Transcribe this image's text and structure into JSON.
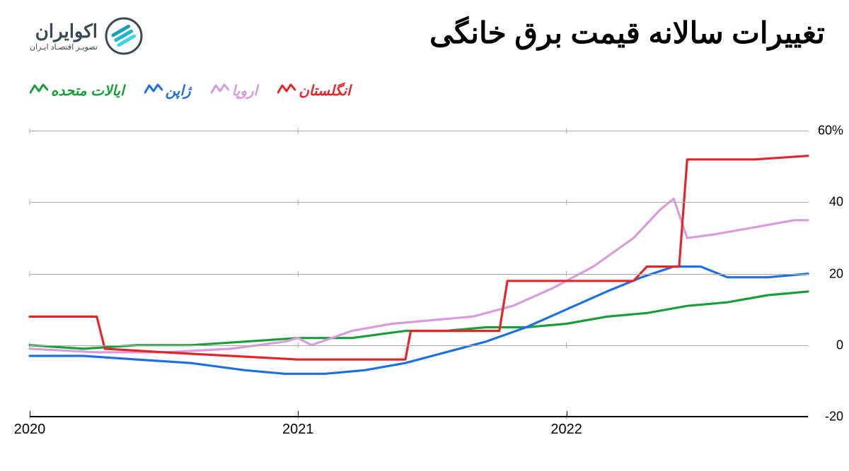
{
  "logo": {
    "main": "اکوایران",
    "sub": "تصویـر اقتصـاد ایـران",
    "stripe_colors": [
      "#19a0b3",
      "#1fb6c9",
      "#3fd3e3"
    ]
  },
  "title": "تغییرات سالانه قیمت برق خانگی",
  "legend": [
    {
      "label": "انگلستان",
      "color": "#e3262a"
    },
    {
      "label": "اروپا",
      "color": "#d89bdc"
    },
    {
      "label": "ژاپن",
      "color": "#1f6fe0"
    },
    {
      "label": "ایالات متحده",
      "color": "#1a9e3c"
    }
  ],
  "chart": {
    "type": "line",
    "background_color": "#ffffff",
    "grid_color": "#b0aaa4",
    "line_width": 3.2,
    "xlim": [
      2020,
      2022.9
    ],
    "ylim": [
      -20,
      65
    ],
    "y_ticks": [
      -20,
      0,
      20,
      40,
      60
    ],
    "y_tick_labels": [
      "-20",
      "0",
      "20",
      "40",
      "60%"
    ],
    "x_ticks": [
      2020,
      2021,
      2022
    ],
    "x_tick_labels": [
      "2020",
      "2021",
      "2022"
    ],
    "series": {
      "uk": {
        "color": "#e3262a",
        "points": [
          [
            2020.0,
            8
          ],
          [
            2020.25,
            8
          ],
          [
            2020.28,
            -1
          ],
          [
            2020.5,
            -2
          ],
          [
            2020.75,
            -3
          ],
          [
            2021.0,
            -4
          ],
          [
            2021.25,
            -4
          ],
          [
            2021.4,
            -4
          ],
          [
            2021.42,
            4
          ],
          [
            2021.7,
            4
          ],
          [
            2021.75,
            4
          ],
          [
            2021.78,
            18
          ],
          [
            2022.1,
            18
          ],
          [
            2022.25,
            18
          ],
          [
            2022.3,
            22
          ],
          [
            2022.42,
            22
          ],
          [
            2022.45,
            52
          ],
          [
            2022.7,
            52
          ],
          [
            2022.9,
            53
          ]
        ]
      },
      "europe": {
        "color": "#d89bdc",
        "points": [
          [
            2020.0,
            -1
          ],
          [
            2020.25,
            -2
          ],
          [
            2020.5,
            -2
          ],
          [
            2020.75,
            -1
          ],
          [
            2020.95,
            1
          ],
          [
            2021.0,
            2
          ],
          [
            2021.05,
            0
          ],
          [
            2021.2,
            4
          ],
          [
            2021.35,
            6
          ],
          [
            2021.5,
            7
          ],
          [
            2021.65,
            8
          ],
          [
            2021.8,
            11
          ],
          [
            2021.95,
            16
          ],
          [
            2022.1,
            22
          ],
          [
            2022.25,
            30
          ],
          [
            2022.35,
            38
          ],
          [
            2022.4,
            41
          ],
          [
            2022.45,
            30
          ],
          [
            2022.55,
            31
          ],
          [
            2022.7,
            33
          ],
          [
            2022.85,
            35
          ],
          [
            2022.9,
            35
          ]
        ]
      },
      "japan": {
        "color": "#1f6fe0",
        "points": [
          [
            2020.0,
            -3
          ],
          [
            2020.2,
            -3
          ],
          [
            2020.4,
            -4
          ],
          [
            2020.6,
            -5
          ],
          [
            2020.8,
            -7
          ],
          [
            2020.95,
            -8
          ],
          [
            2021.1,
            -8
          ],
          [
            2021.25,
            -7
          ],
          [
            2021.4,
            -5
          ],
          [
            2021.55,
            -2
          ],
          [
            2021.7,
            1
          ],
          [
            2021.85,
            5
          ],
          [
            2022.0,
            10
          ],
          [
            2022.15,
            15
          ],
          [
            2022.28,
            19
          ],
          [
            2022.4,
            22
          ],
          [
            2022.5,
            22
          ],
          [
            2022.6,
            19
          ],
          [
            2022.75,
            19
          ],
          [
            2022.9,
            20
          ]
        ]
      },
      "us": {
        "color": "#1a9e3c",
        "points": [
          [
            2020.0,
            0
          ],
          [
            2020.2,
            -1
          ],
          [
            2020.4,
            0
          ],
          [
            2020.6,
            0
          ],
          [
            2020.8,
            1
          ],
          [
            2021.0,
            2
          ],
          [
            2021.2,
            2
          ],
          [
            2021.3,
            3
          ],
          [
            2021.4,
            4
          ],
          [
            2021.55,
            4
          ],
          [
            2021.7,
            5
          ],
          [
            2021.85,
            5
          ],
          [
            2022.0,
            6
          ],
          [
            2022.15,
            8
          ],
          [
            2022.3,
            9
          ],
          [
            2022.45,
            11
          ],
          [
            2022.6,
            12
          ],
          [
            2022.75,
            14
          ],
          [
            2022.9,
            15
          ]
        ]
      }
    },
    "label_fontsize": 18,
    "title_fontsize": 42
  }
}
